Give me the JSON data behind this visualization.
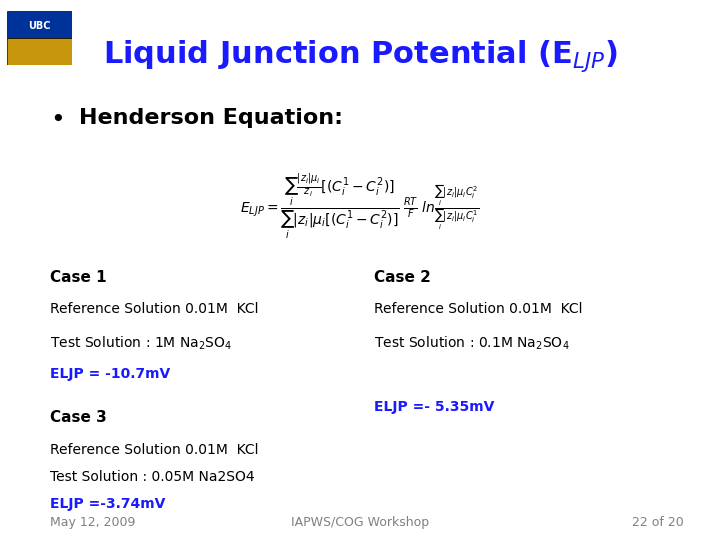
{
  "title": "Liquid Junction Potential (E$_{LJP}$)",
  "title_color": "#1a1aff",
  "title_fontsize": 22,
  "background_color": "#ffffff",
  "bullet_text": "Henderson Equation:",
  "bullet_fontsize": 16,
  "formula": "$E_{LJP} = \\dfrac{\\displaystyle\\sum_i \\dfrac{|z_i|\\mu_i}{z_i}[(C_i^1 - C_i^2)]}{\\displaystyle\\sum_i |z_i|\\mu_i[(C_i^1 - C_i^2)]}\\;\\dfrac{RT}{F}\\;ln\\dfrac{\\displaystyle\\sum_i |z_i|\\mu_i C_i^2}{\\displaystyle\\sum_i |z_i|\\mu_i C_i^1}$",
  "case1_header": "Case 1",
  "case1_line1": "Reference Solution 0.01M  KCl",
  "case1_line2": "Test Solution : 1M Na$_2$SO$_4$",
  "case1_eljp": "ELJP = -10.7mV",
  "case2_header": "Case 2",
  "case2_line1": "Reference Solution 0.01M  KCl",
  "case2_line2": "Test Solution : 0.1M Na$_2$SO$_4$",
  "case2_eljp": "ELJP =- 5.35mV",
  "case3_header": "Case 3",
  "case3_line1": "Reference Solution 0.01M  KCl",
  "case3_line2": "Test Solution : 0.05M Na2SO4",
  "case3_eljp": "ELJP =-3.74mV",
  "footer_left": "May 12, 2009",
  "footer_center": "IAPWS/COG Workshop",
  "footer_right": "22 of 20",
  "eljp_color": "#1a1aff",
  "header_fontsize": 11,
  "body_fontsize": 10,
  "footer_fontsize": 9
}
